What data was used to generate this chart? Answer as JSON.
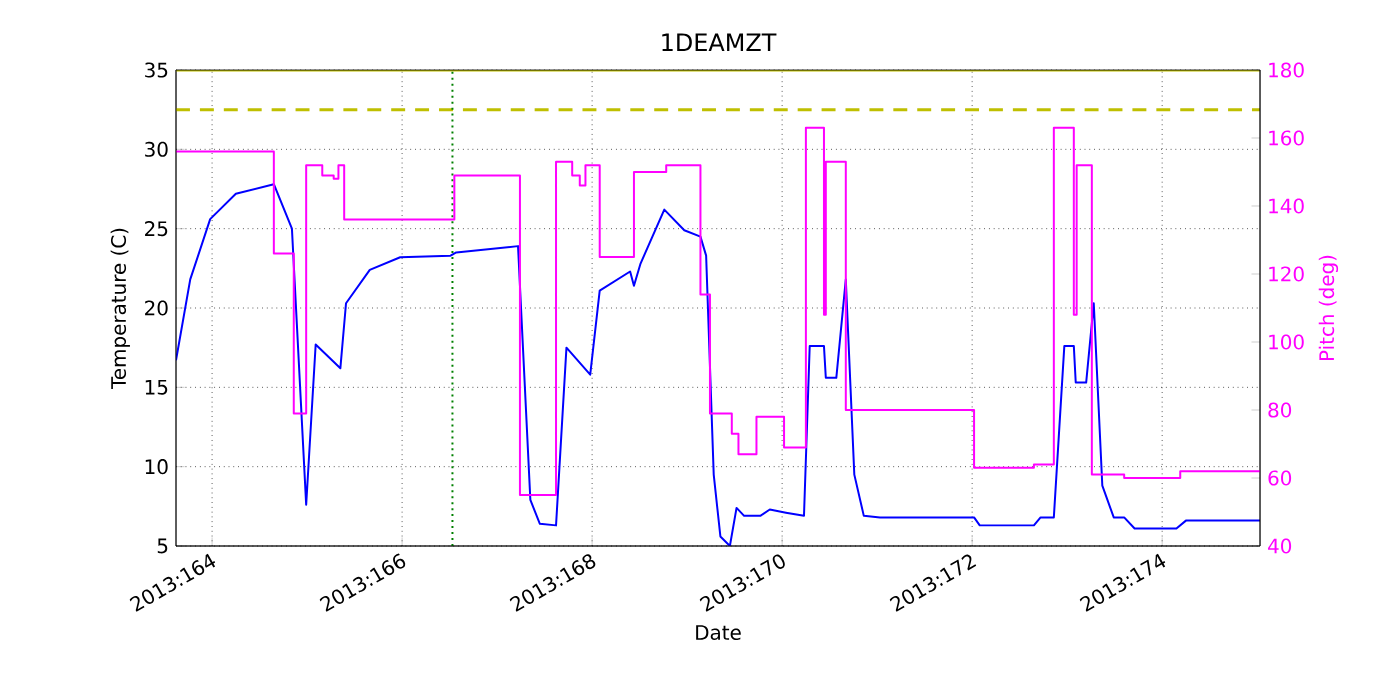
{
  "chart_data": {
    "type": "line",
    "title": "1DEAMZT",
    "xlabel": "Date",
    "ylabel": "Temperature (C)",
    "y2label": "Pitch (deg)",
    "xlim": [
      "2013-06-12T14:53",
      "2013-06-24T00:43"
    ],
    "ylim": [
      5,
      35
    ],
    "y2lim": [
      40,
      180
    ],
    "xticks": [
      {
        "value": "2013-06-13",
        "label": "2013:164"
      },
      {
        "value": "2013-06-15",
        "label": "2013:166"
      },
      {
        "value": "2013-06-17",
        "label": "2013:168"
      },
      {
        "value": "2013-06-19",
        "label": "2013:170"
      },
      {
        "value": "2013-06-21",
        "label": "2013:172"
      },
      {
        "value": "2013-06-23",
        "label": "2013:174"
      }
    ],
    "yticks": [
      5,
      10,
      15,
      20,
      25,
      30,
      35
    ],
    "y2ticks": [
      40,
      60,
      80,
      100,
      120,
      140,
      160,
      180
    ],
    "grid": true,
    "series": [
      {
        "type": "line",
        "color": "#0000ff",
        "x": [
          "2013-06-12T14:53",
          "2013-06-12T18:29",
          "2013-06-12T23:31",
          "2013-06-13T06:00",
          "2013-06-13T15:36",
          "2013-06-13T20:10",
          "2013-06-13T23:46",
          "2013-06-14T02:10",
          "2013-06-14T08:24",
          "2013-06-14T09:50",
          "2013-06-14T15:50",
          "2013-06-14T23:31",
          "2013-06-15T12:14",
          "2013-06-15T13:41",
          "2013-06-16T05:17",
          "2013-06-16T08:24",
          "2013-06-16T10:48",
          "2013-06-16T14:53",
          "2013-06-16T17:31",
          "2013-06-16T23:31",
          "2013-06-17T01:55",
          "2013-06-17T09:36",
          "2013-06-17T10:34",
          "2013-06-17T12:14",
          "2013-06-17T18:14",
          "2013-06-17T23:17",
          "2013-06-18T03:22",
          "2013-06-18T04:48",
          "2013-06-18T06:43",
          "2013-06-18T08:24",
          "2013-06-18T10:48",
          "2013-06-18T12:29",
          "2013-06-18T14:24",
          "2013-06-18T18:29",
          "2013-06-18T20:53",
          "2013-06-19T00:58",
          "2013-06-19T05:31",
          "2013-06-19T06:58",
          "2013-06-19T10:34",
          "2013-06-19T11:02",
          "2013-06-19T13:41",
          "2013-06-19T16:05",
          "2013-06-19T18:14",
          "2013-06-19T20:38",
          "2013-06-20T00:43",
          "2013-06-21T00:29",
          "2013-06-21T01:55",
          "2013-06-21T15:36",
          "2013-06-21T17:17",
          "2013-06-21T20:38",
          "2013-06-21T23:17",
          "2013-06-22T01:41",
          "2013-06-22T02:10",
          "2013-06-22T04:48",
          "2013-06-22T06:43",
          "2013-06-22T08:53",
          "2013-06-22T11:46",
          "2013-06-22T14:24",
          "2013-06-22T17:02",
          "2013-06-23T03:36",
          "2013-06-23T06:00",
          "2013-06-24T00:43"
        ],
        "values": [
          16.7,
          21.8,
          25.6,
          27.2,
          27.8,
          25.0,
          7.6,
          17.7,
          16.2,
          20.3,
          22.4,
          23.2,
          23.3,
          23.5,
          23.9,
          7.9,
          6.4,
          6.3,
          17.5,
          15.8,
          21.1,
          22.3,
          21.4,
          22.8,
          26.2,
          24.9,
          24.5,
          23.3,
          9.5,
          5.6,
          5.0,
          7.4,
          6.9,
          6.9,
          7.3,
          7.1,
          6.9,
          17.6,
          17.6,
          15.6,
          15.6,
          21.8,
          9.5,
          6.9,
          6.8,
          6.8,
          6.3,
          6.3,
          6.8,
          6.8,
          17.6,
          17.6,
          15.3,
          15.3,
          20.3,
          8.8,
          6.8,
          6.8,
          6.1,
          6.1,
          6.6,
          6.6
        ]
      },
      {
        "type": "step",
        "axis": "y2",
        "color": "#ff00ff",
        "x": [
          "2013-06-12T14:53",
          "2013-06-13T15:36",
          "2013-06-13T20:38",
          "2013-06-13T23:46",
          "2013-06-14T03:50",
          "2013-06-14T06:43",
          "2013-06-14T07:55",
          "2013-06-14T09:22",
          "2013-06-15T13:12",
          "2013-06-16T05:46",
          "2013-06-16T14:53",
          "2013-06-16T18:58",
          "2013-06-16T20:53",
          "2013-06-16T22:19",
          "2013-06-17T01:55",
          "2013-06-17T10:34",
          "2013-06-17T18:43",
          "2013-06-18T03:22",
          "2013-06-18T05:46",
          "2013-06-18T11:17",
          "2013-06-18T12:58",
          "2013-06-18T17:31",
          "2013-06-19T00:29",
          "2013-06-19T06:00",
          "2013-06-19T10:34",
          "2013-06-19T11:02",
          "2013-06-19T16:05",
          "2013-06-21T00:29",
          "2013-06-21T15:36",
          "2013-06-21T20:38",
          "2013-06-22T01:41",
          "2013-06-22T02:24",
          "2013-06-22T06:14",
          "2013-06-22T14:24",
          "2013-06-23T04:34",
          "2013-06-24T00:43"
        ],
        "values": [
          156,
          126,
          79,
          152,
          149,
          148,
          152,
          136,
          149,
          55,
          153,
          149,
          146,
          152,
          125,
          150,
          152,
          114,
          79,
          73,
          67,
          78,
          69,
          163,
          108,
          153,
          80,
          63,
          64,
          163,
          108,
          152,
          61,
          60,
          62,
          62
        ]
      }
    ],
    "ref_lines": [
      {
        "axis": "y",
        "value": 35,
        "color": "#bfbf00",
        "line_style": "solid"
      },
      {
        "axis": "y",
        "value": 32.5,
        "color": "#bfbf00",
        "line_style": "dashed"
      },
      {
        "axis": "x",
        "value": "2013-06-15T12:43",
        "color": "#008000",
        "line_style": "dotted"
      }
    ]
  }
}
